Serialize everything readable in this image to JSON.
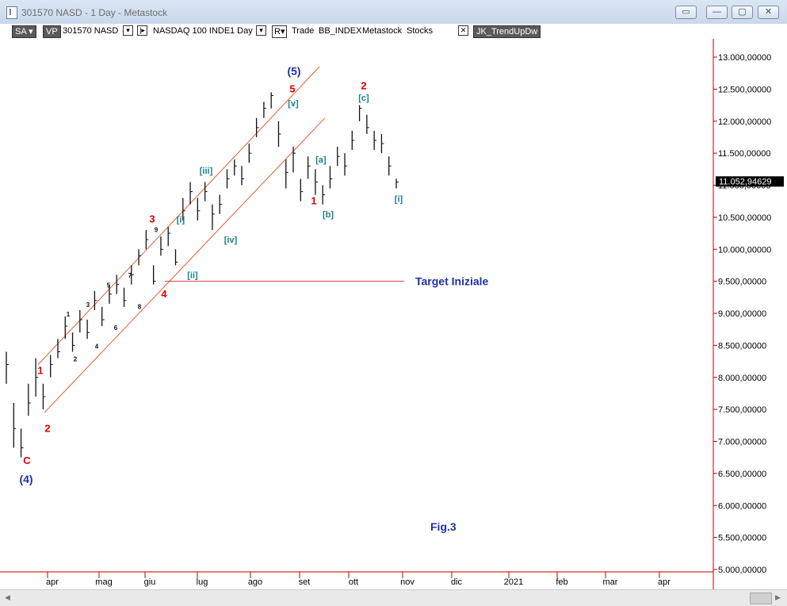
{
  "window": {
    "title": "301570 NASD - 1 Day - Metastock",
    "buttons": {
      "restore": "▭",
      "minimize": "—",
      "maximize": "▢",
      "close": "✕"
    }
  },
  "toolbar": {
    "sa": "SA",
    "vp": "VP",
    "symbol": "301570 NASD",
    "market": "NASDAQ 100 INDE",
    "period": "1 Day",
    "trade": "Trade",
    "bbindex": "BB_INDEX",
    "metastock": "Metastock",
    "stocks": "Stocks",
    "expert": "JK_TrendUpDw"
  },
  "colors": {
    "price_axis": "#c00000",
    "labels_red": "#e00000",
    "labels_blue": "#1f2fa8",
    "labels_teal": "#1a7f8a",
    "channel": "#e06030"
  },
  "chart_data": {
    "type": "bar",
    "y_ticks": [
      "13.000,00000",
      "12.500,00000",
      "12.000,00000",
      "11.500,00000",
      "11.000,00000",
      "10.500,00000",
      "10.000,00000",
      "9.500,00000",
      "9.000,00000",
      "8.500,00000",
      "8.000,00000",
      "7.500,00000",
      "7.000,00000",
      "6.500,00000",
      "6.000,00000",
      "5.500,00000",
      "5.000,00000"
    ],
    "y_values": [
      13000,
      12500,
      12000,
      11500,
      11000,
      10500,
      10000,
      9500,
      9000,
      8500,
      8000,
      7500,
      7000,
      6500,
      6000,
      5500,
      5000
    ],
    "x_ticks": [
      "apr",
      "mag",
      "giu",
      "lug",
      "ago",
      "set",
      "ott",
      "nov",
      "dic",
      "2021",
      "feb",
      "mar",
      "apr"
    ],
    "last_price": "11.052,94629",
    "target_label": "Target Iniziale",
    "fig_label": "Fig.3",
    "price_path": [
      [
        8200,
        8400,
        7900
      ],
      [
        7200,
        7600,
        6900
      ],
      [
        6900,
        7200,
        6750
      ],
      [
        7600,
        7900,
        7400
      ],
      [
        8000,
        8300,
        7700
      ],
      [
        7700,
        7900,
        7500
      ],
      [
        8200,
        8350,
        8000
      ],
      [
        8400,
        8600,
        8300
      ],
      [
        8800,
        8950,
        8600
      ],
      [
        8500,
        8700,
        8400
      ],
      [
        8900,
        9050,
        8700
      ],
      [
        8700,
        8900,
        8600
      ],
      [
        9200,
        9350,
        9050
      ],
      [
        8900,
        9100,
        8800
      ],
      [
        9300,
        9450,
        9150
      ],
      [
        9450,
        9600,
        9300
      ],
      [
        9200,
        9400,
        9100
      ],
      [
        9600,
        9750,
        9450
      ],
      [
        9900,
        10000,
        9750
      ],
      [
        10150,
        10300,
        10000
      ],
      [
        9500,
        9750,
        9450
      ],
      [
        10000,
        10200,
        9900
      ],
      [
        10250,
        10350,
        10050
      ],
      [
        9800,
        10000,
        9750
      ],
      [
        10600,
        10800,
        10450
      ],
      [
        10900,
        11050,
        10700
      ],
      [
        10600,
        10800,
        10450
      ],
      [
        10900,
        11050,
        10750
      ],
      [
        10550,
        10700,
        10300
      ],
      [
        10700,
        10850,
        10550
      ],
      [
        11100,
        11250,
        10950
      ],
      [
        11300,
        11400,
        11150
      ],
      [
        11100,
        11300,
        11000
      ],
      [
        11500,
        11650,
        11350
      ],
      [
        11900,
        12050,
        11750
      ],
      [
        12200,
        12300,
        12050
      ],
      [
        12400,
        12450,
        12200
      ],
      [
        11800,
        12000,
        11600
      ],
      [
        11200,
        11400,
        10950
      ],
      [
        11500,
        11600,
        11200
      ],
      [
        10900,
        11100,
        10750
      ],
      [
        11300,
        11450,
        11100
      ],
      [
        11050,
        11250,
        10850
      ],
      [
        10850,
        11000,
        10700
      ],
      [
        11100,
        11300,
        10950
      ],
      [
        11450,
        11600,
        11300
      ],
      [
        11300,
        11500,
        11150
      ],
      [
        11700,
        11850,
        11550
      ],
      [
        12200,
        12250,
        12000
      ],
      [
        11900,
        12100,
        11800
      ],
      [
        11700,
        11850,
        11550
      ],
      [
        11650,
        11800,
        11500
      ],
      [
        11300,
        11450,
        11150
      ],
      [
        11050,
        11100,
        10950
      ]
    ],
    "waves": {
      "blue": [
        "(4)",
        "(5)"
      ],
      "red": [
        "C",
        "1",
        "2",
        "3",
        "4",
        "5",
        "1",
        "2"
      ],
      "black": [
        "1",
        "2",
        "3",
        "4",
        "5",
        "6",
        "7",
        "8",
        "9"
      ],
      "teal": [
        "[i]",
        "[ii]",
        "[iii]",
        "[iv]",
        "[v]",
        "[a]",
        "[b]",
        "[c]",
        "[i]"
      ]
    }
  }
}
